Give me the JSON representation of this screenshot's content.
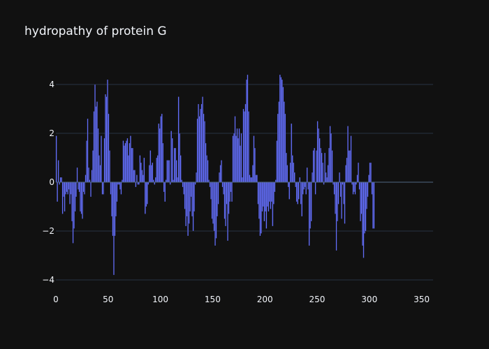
{
  "chart_data": {
    "type": "bar",
    "title": "hydropathy of protein G",
    "xlabel": "",
    "ylabel": "",
    "xlim": [
      0,
      361
    ],
    "ylim": [
      -4.2,
      4.6
    ],
    "x_ticks": [
      0,
      50,
      100,
      150,
      200,
      250,
      300,
      350
    ],
    "y_ticks": [
      -4,
      -2,
      0,
      2,
      4
    ],
    "x_tick_labels": [
      "0",
      "50",
      "100",
      "150",
      "200",
      "250",
      "300",
      "350"
    ],
    "y_tick_labels": [
      "−4",
      "−2",
      "0",
      "2",
      "4"
    ],
    "grid": true,
    "bar_color": "#636efa",
    "background": "#111111",
    "values": [
      1.9,
      -0.8,
      0.9,
      -0.1,
      0.2,
      0.2,
      -1.3,
      -0.6,
      -1.2,
      -0.5,
      -0.4,
      -0.5,
      -0.3,
      -0.9,
      -0.5,
      -1.6,
      -2.5,
      -1.9,
      -1.2,
      -0.6,
      0.6,
      -0.3,
      -0.4,
      -1.2,
      -1.3,
      -1.5,
      -0.4,
      -0.5,
      0.3,
      1.7,
      2.6,
      0.6,
      0.1,
      -0.6,
      0.5,
      1.3,
      2.9,
      4.0,
      3.1,
      3.3,
      2.2,
      1.1,
      0.7,
      1.9,
      -0.5,
      -0.5,
      1.8,
      3.6,
      3.5,
      4.2,
      2.8,
      1.3,
      -0.5,
      -1.4,
      -2.2,
      -3.8,
      -2.2,
      -1.4,
      -0.8,
      -0.1,
      -0.1,
      -0.3,
      -0.5,
      0.1,
      1.7,
      1.5,
      1.6,
      1.7,
      1.8,
      1.1,
      1.6,
      1.9,
      1.4,
      1.4,
      0.5,
      0.5,
      -0.2,
      0.3,
      -0.1,
      -0.1,
      1.1,
      0.8,
      0.5,
      0.3,
      1.0,
      -1.3,
      -1.0,
      -0.9,
      -0.1,
      0.7,
      1.3,
      0.7,
      0.8,
      0.1,
      -0.1,
      0.2,
      1.0,
      1.1,
      2.4,
      2.2,
      2.7,
      2.8,
      1.6,
      -0.4,
      -0.8,
      0.1,
      0.9,
      0.9,
      0.9,
      -0.1,
      2.1,
      1.8,
      0.1,
      1.4,
      1.4,
      0.9,
      0.2,
      3.5,
      2.0,
      1.1,
      0.1,
      -0.2,
      -0.5,
      -1.1,
      -1.8,
      -1.4,
      -2.2,
      -1.7,
      -1.2,
      -0.6,
      -1.4,
      -2.0,
      -1.2,
      -0.1,
      0.4,
      2.6,
      3.2,
      2.7,
      3.0,
      3.2,
      3.5,
      2.8,
      2.5,
      1.6,
      1.1,
      0.9,
      0.1,
      -0.2,
      -0.7,
      -1.5,
      -1.7,
      -2.0,
      -2.6,
      -2.3,
      -1.4,
      -0.9,
      0.4,
      0.7,
      0.9,
      -0.2,
      -0.5,
      -1.5,
      -1.8,
      -0.9,
      -2.4,
      -1.3,
      -0.8,
      -0.4,
      -0.8,
      1.9,
      2.0,
      2.7,
      1.9,
      2.2,
      1.8,
      2.2,
      1.5,
      2.0,
      0.2,
      3.0,
      2.9,
      3.2,
      4.2,
      4.4,
      2.9,
      0.3,
      0.2,
      0.2,
      0.7,
      1.9,
      1.4,
      0.3,
      0.3,
      -0.9,
      -1.5,
      -2.2,
      -2.1,
      -1.2,
      -1.0,
      -1.6,
      -1.2,
      -1.9,
      -1.0,
      -1.2,
      -0.8,
      -1.1,
      -0.8,
      -1.8,
      -0.9,
      -0.4,
      0.1,
      1.7,
      2.8,
      3.3,
      4.4,
      4.3,
      4.2,
      3.9,
      3.3,
      2.8,
      1.2,
      0.7,
      -0.2,
      -0.7,
      0.8,
      2.4,
      1.1,
      0.8,
      0.4,
      -0.2,
      -0.8,
      -0.9,
      -0.7,
      0.2,
      -0.9,
      -1.4,
      -0.5,
      -0.3,
      -0.2,
      -0.5,
      0.6,
      -0.3,
      -2.6,
      -1.9,
      -1.6,
      0.4,
      1.3,
      1.4,
      -0.5,
      1.3,
      2.5,
      2.2,
      1.8,
      1.4,
      1.2,
      0.8,
      -0.1,
      1.2,
      0.4,
      0.2,
      0.7,
      1.4,
      2.3,
      2.0,
      1.3,
      -0.1,
      -0.5,
      -1.3,
      -2.8,
      -1.6,
      -0.9,
      0.4,
      -0.6,
      -1.5,
      -0.1,
      -0.9,
      -1.7,
      0.7,
      1.0,
      2.3,
      1.3,
      1.3,
      1.9,
      -0.1,
      -0.5,
      -0.4,
      -0.5,
      -0.1,
      0.3,
      0.8,
      -0.3,
      -1.6,
      -1.3,
      -2.6,
      -3.1,
      -2.1,
      -2.0,
      -1.1,
      -0.6,
      0.3,
      0.8,
      0.8,
      -0.5,
      -1.9,
      -1.9
    ]
  }
}
